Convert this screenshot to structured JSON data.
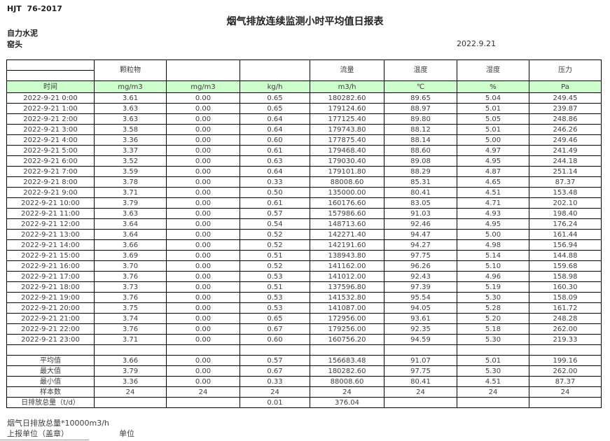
{
  "meta": {
    "standard": "HJT  76-2017",
    "title": "烟气排放连续监测小时平均值日报表",
    "company": "自力水泥",
    "site": "窑头",
    "date": "2022.9.21"
  },
  "table": {
    "group_headers": [
      "",
      "颗粒物",
      "",
      "",
      "流量",
      "温度",
      "湿度",
      "压力"
    ],
    "unit_row": [
      "时间",
      "mg/m3",
      "mg/m3",
      "kg/h",
      "m3/h",
      "℃",
      "%",
      "Pa"
    ],
    "rows": [
      [
        "2022-9-21 0:00",
        "3.61",
        "0.00",
        "0.65",
        "180282.60",
        "89.65",
        "5.04",
        "249.45"
      ],
      [
        "2022-9-21 1:00",
        "3.63",
        "0.00",
        "0.65",
        "179124.60",
        "88.97",
        "5.01",
        "239.87"
      ],
      [
        "2022-9-21 2:00",
        "3.63",
        "0.00",
        "0.64",
        "177125.40",
        "89.80",
        "5.05",
        "248.86"
      ],
      [
        "2022-9-21 3:00",
        "3.58",
        "0.00",
        "0.64",
        "179743.80",
        "88.12",
        "5.01",
        "246.26"
      ],
      [
        "2022-9-21 4:00",
        "3.36",
        "0.00",
        "0.60",
        "177875.40",
        "88.14",
        "5.00",
        "249.46"
      ],
      [
        "2022-9-21 5:00",
        "3.37",
        "0.00",
        "0.61",
        "179468.40",
        "88.60",
        "4.97",
        "241.49"
      ],
      [
        "2022-9-21 6:00",
        "3.52",
        "0.00",
        "0.63",
        "179030.40",
        "89.08",
        "4.95",
        "244.18"
      ],
      [
        "2022-9-21 7:00",
        "3.59",
        "0.00",
        "0.64",
        "179101.80",
        "88.29",
        "4.87",
        "251.14"
      ],
      [
        "2022-9-21 8:00",
        "3.78",
        "0.00",
        "0.33",
        "88008.60",
        "85.31",
        "4.65",
        "87.37"
      ],
      [
        "2022-9-21 9:00",
        "3.71",
        "0.00",
        "0.50",
        "135000.00",
        "80.41",
        "4.51",
        "153.48"
      ],
      [
        "2022-9-21 10:00",
        "3.79",
        "0.00",
        "0.61",
        "160176.60",
        "83.05",
        "4.71",
        "202.10"
      ],
      [
        "2022-9-21 11:00",
        "3.63",
        "0.00",
        "0.57",
        "157986.60",
        "91.03",
        "4.93",
        "198.40"
      ],
      [
        "2022-9-21 12:00",
        "3.64",
        "0.00",
        "0.54",
        "148713.60",
        "92.46",
        "4.95",
        "176.24"
      ],
      [
        "2022-9-21 13:00",
        "3.64",
        "0.00",
        "0.52",
        "142271.40",
        "94.47",
        "5.00",
        "161.44"
      ],
      [
        "2022-9-21 14:00",
        "3.66",
        "0.00",
        "0.52",
        "142191.60",
        "94.27",
        "4.98",
        "156.94"
      ],
      [
        "2022-9-21 15:00",
        "3.69",
        "0.00",
        "0.51",
        "138943.80",
        "97.75",
        "5.14",
        "144.88"
      ],
      [
        "2022-9-21 16:00",
        "3.70",
        "0.00",
        "0.52",
        "141162.00",
        "96.26",
        "5.10",
        "159.68"
      ],
      [
        "2022-9-21 17:00",
        "3.76",
        "0.00",
        "0.53",
        "141012.00",
        "92.43",
        "4.96",
        "158.98"
      ],
      [
        "2022-9-21 18:00",
        "3.73",
        "0.00",
        "0.51",
        "137596.80",
        "97.39",
        "5.19",
        "160.30"
      ],
      [
        "2022-9-21 19:00",
        "3.76",
        "0.00",
        "0.53",
        "141532.80",
        "95.54",
        "5.30",
        "158.09"
      ],
      [
        "2022-9-21 20:00",
        "3.75",
        "0.00",
        "0.53",
        "141087.00",
        "94.05",
        "5.28",
        "161.72"
      ],
      [
        "2022-9-21 21:00",
        "3.74",
        "0.00",
        "0.65",
        "172956.00",
        "93.61",
        "5.20",
        "248.28"
      ],
      [
        "2022-9-21 22:00",
        "3.76",
        "0.00",
        "0.67",
        "179256.00",
        "92.35",
        "5.18",
        "262.00"
      ],
      [
        "2022-9-21 23:00",
        "3.71",
        "0.00",
        "0.60",
        "160756.20",
        "94.59",
        "5.30",
        "219.33"
      ]
    ],
    "summary_rows": [
      [
        "平均值",
        "3.66",
        "0.00",
        "0.57",
        "156683.48",
        "91.07",
        "5.01",
        "199.16"
      ],
      [
        "最大值",
        "3.79",
        "0.00",
        "0.67",
        "180282.60",
        "97.75",
        "5.30",
        "262.00"
      ],
      [
        "最小值",
        "3.36",
        "0.00",
        "0.33",
        "88008.60",
        "80.41",
        "4.51",
        "87.37"
      ],
      [
        "样本数",
        "24",
        "24",
        "24",
        "24",
        "24",
        "24",
        "24"
      ],
      [
        "日排放总量（t/d）",
        "",
        "",
        "0.01",
        "376.04",
        "",
        "",
        ""
      ]
    ]
  },
  "footer": {
    "note_total": "烟气日排放总量*10000m3/h",
    "report_unit": "上报单位（盖章）",
    "unit_label": "单位"
  },
  "colors": {
    "header_green": "#ccffcc",
    "border": "#000000",
    "text": "#3d3d3d"
  }
}
